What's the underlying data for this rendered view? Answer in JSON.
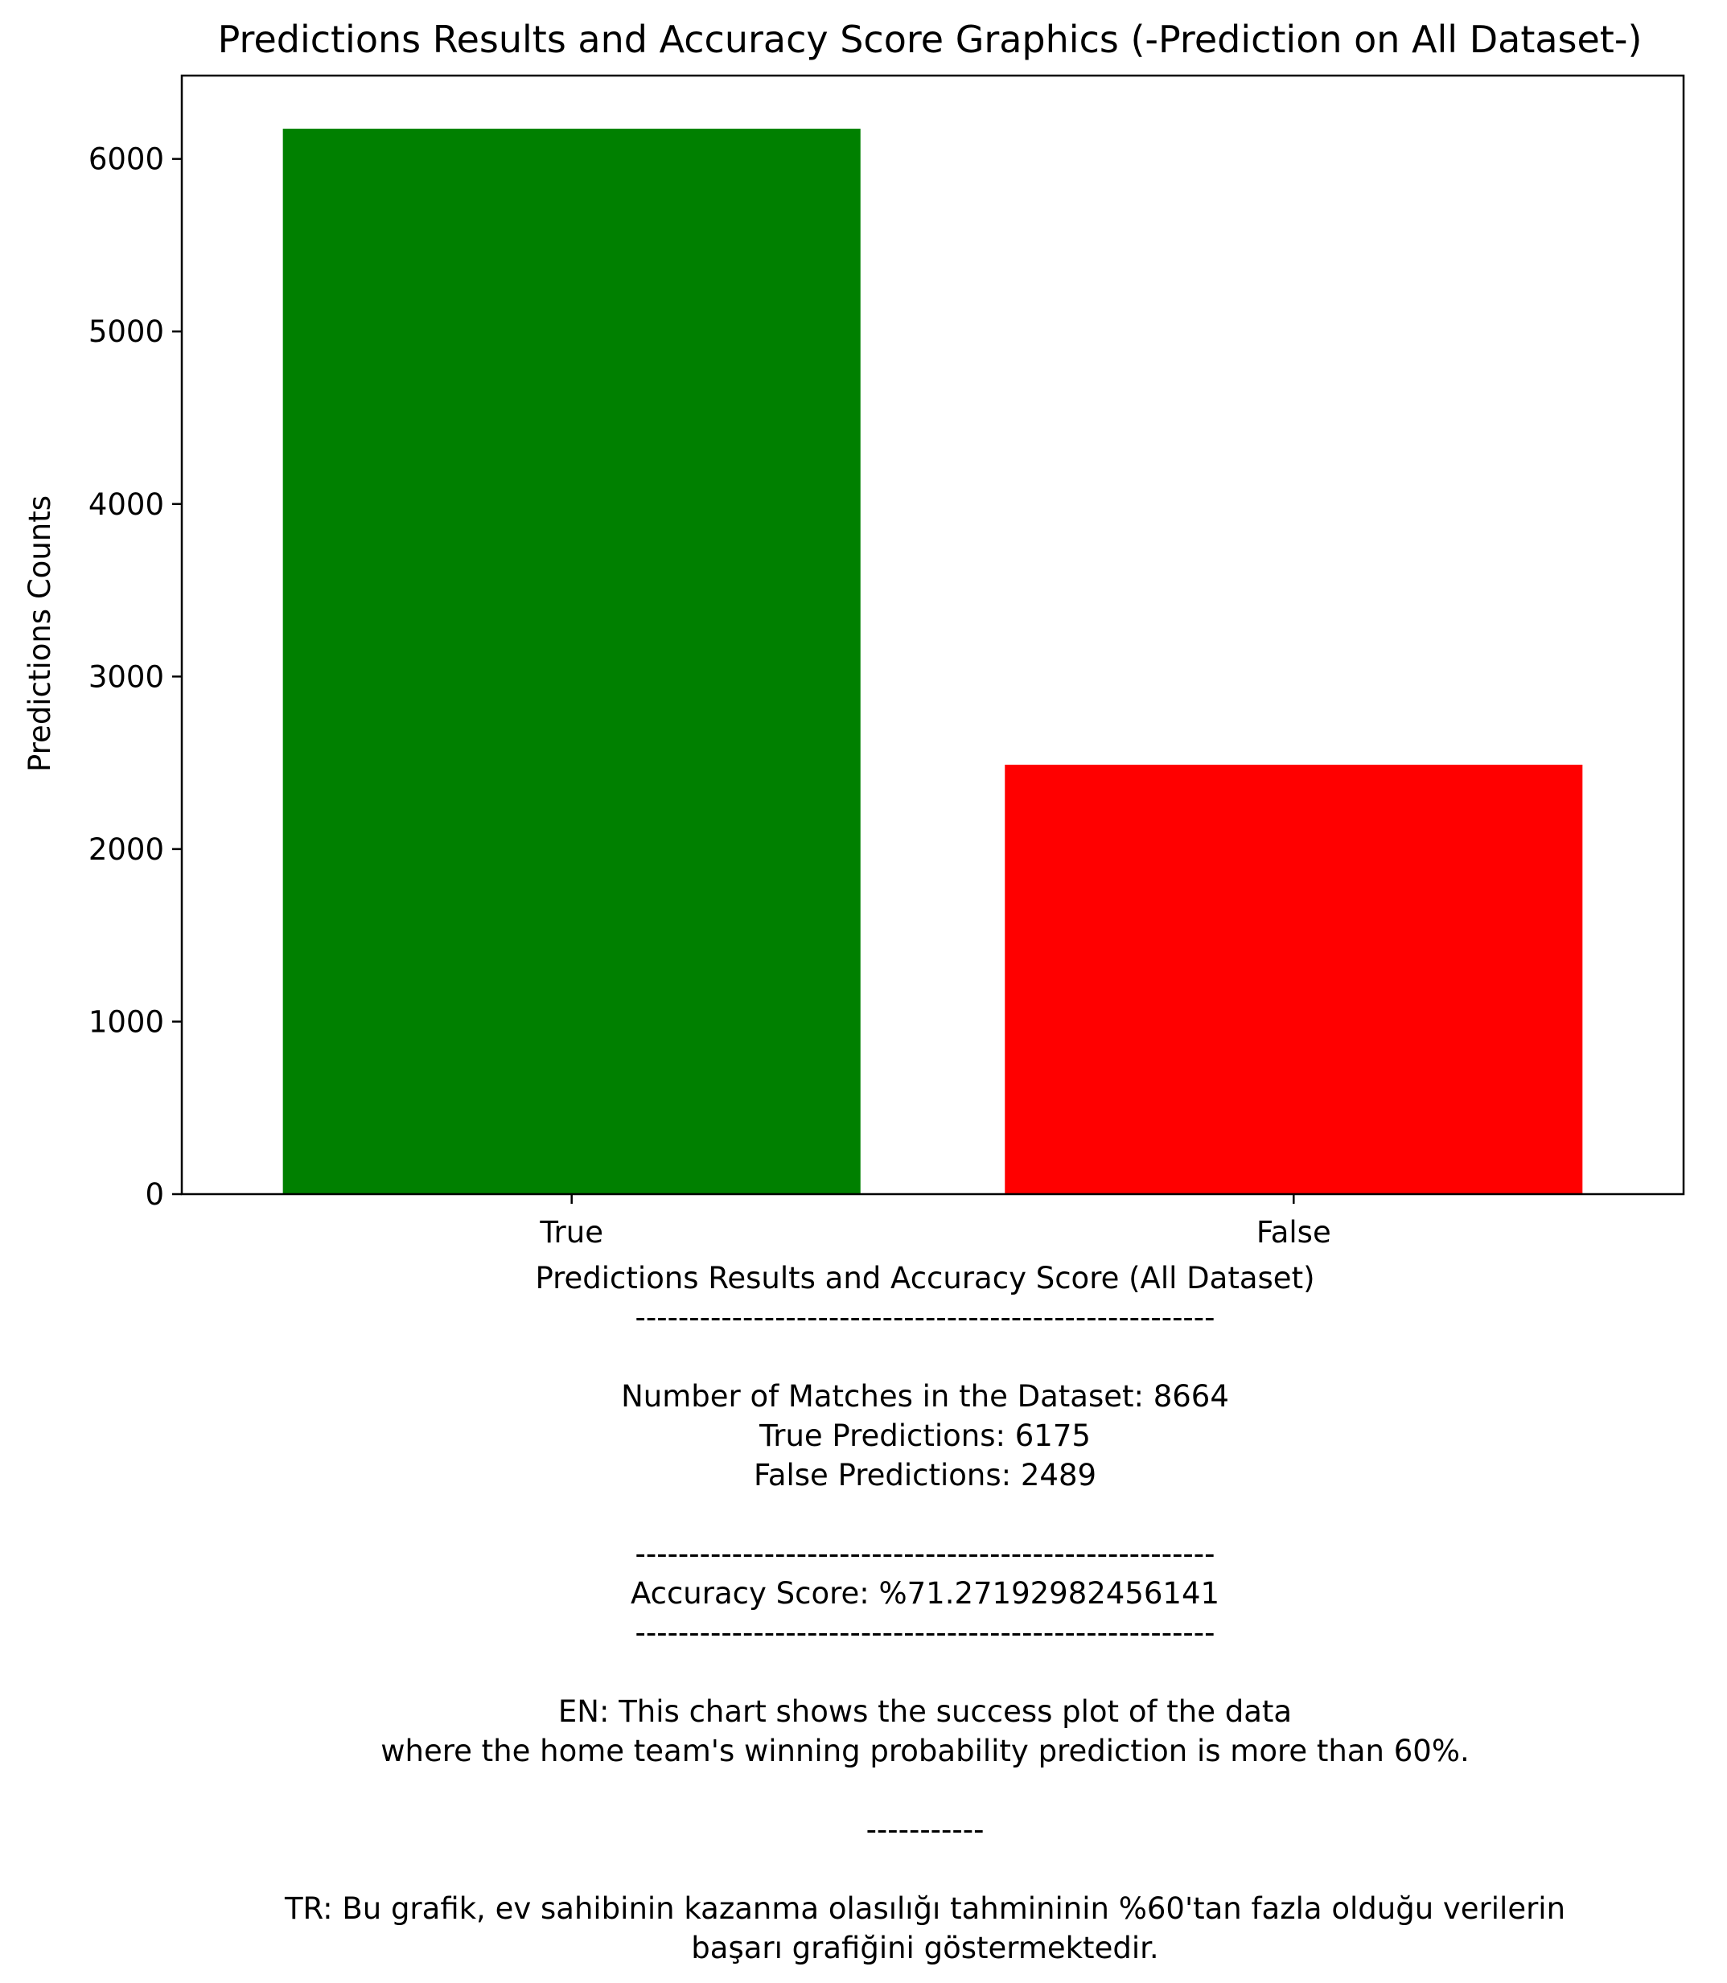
{
  "chart_data": {
    "type": "bar",
    "title": "Predictions Results and Accuracy Score Graphics (-Prediction on All Dataset-)",
    "ylabel": "Predictions Counts",
    "categories": [
      "True",
      "False"
    ],
    "values": [
      6175,
      2489
    ],
    "colors": [
      "#008000",
      "#ff0000"
    ],
    "ylim": [
      0,
      6483
    ],
    "yticks": [
      0,
      1000,
      2000,
      3000,
      4000,
      5000,
      6000
    ],
    "grid": false,
    "xlabel_lines": [
      "Predictions Results and Accuracy Score (All Dataset)",
      "------------------------------------------------------",
      "",
      "Number of Matches in the Dataset: 8664",
      "True Predictions: 6175",
      "False Predictions: 2489",
      "",
      "------------------------------------------------------",
      "Accuracy Score: %71.27192982456141",
      "------------------------------------------------------",
      "",
      "EN: This chart shows the success plot of the data",
      "where the home team's winning probability prediction is more than 60%.",
      "",
      "-----------",
      "",
      "TR: Bu grafik, ev sahibinin kazanma olasılığı tahmininin %60'tan fazla olduğu verilerin",
      "başarı grafiğini göstermektedir."
    ]
  }
}
